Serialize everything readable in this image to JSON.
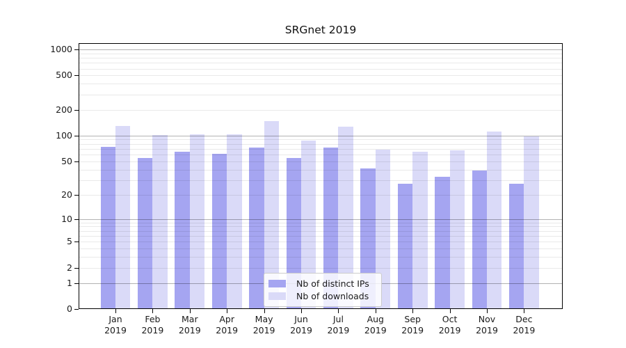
{
  "chart_data": {
    "type": "bar",
    "title": "SRGnet 2019",
    "categories": [
      "Jan",
      "Feb",
      "Mar",
      "Apr",
      "May",
      "Jun",
      "Jul",
      "Aug",
      "Sep",
      "Oct",
      "Nov",
      "Dec"
    ],
    "x_year_label": "2019",
    "series": [
      {
        "name": "Nb of distinct IPs",
        "color": "#a5a5f1",
        "values": [
          74,
          55,
          65,
          61,
          73,
          55,
          73,
          41,
          27,
          33,
          39,
          27
        ]
      },
      {
        "name": "Nb of downloads",
        "color": "#dadaf8",
        "values": [
          130,
          101,
          104,
          103,
          147,
          87,
          128,
          68,
          65,
          67,
          112,
          98
        ]
      }
    ],
    "xlabel": "",
    "ylabel": "",
    "y_scale": "log1p",
    "y_tick_values": [
      0,
      1,
      2,
      5,
      10,
      20,
      50,
      100,
      200,
      500,
      1000
    ],
    "ylim": [
      0,
      1180
    ],
    "grid": "on",
    "legend_position": "lower center"
  }
}
